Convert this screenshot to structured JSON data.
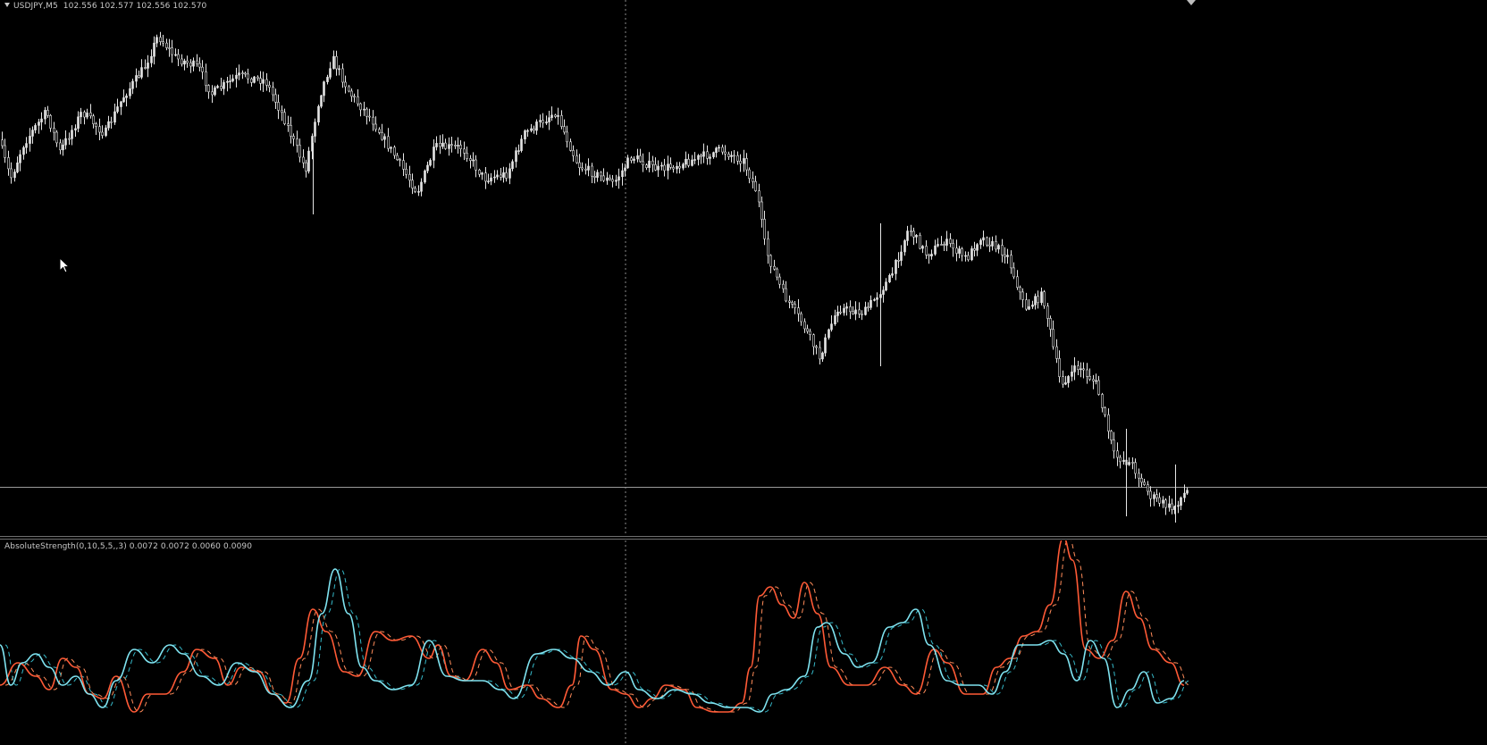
{
  "chart": {
    "symbol_caption": "USDJPY,M5",
    "ohlc_caption": "102.556 102.577 102.556 102.570",
    "indicator_caption": "AbsoluteStrength(0,10,5,5,,3) 0.0072 0.0072 0.0060 0.0090",
    "colors": {
      "background": "#000000",
      "candle": "#e6e6e6",
      "bull_line": "#ff5a36",
      "bull_signal": "#ff8c5a",
      "bear_line": "#7fe3f0",
      "bear_signal": "#35b8c8",
      "grid": "#7a7a7a"
    }
  }
}
